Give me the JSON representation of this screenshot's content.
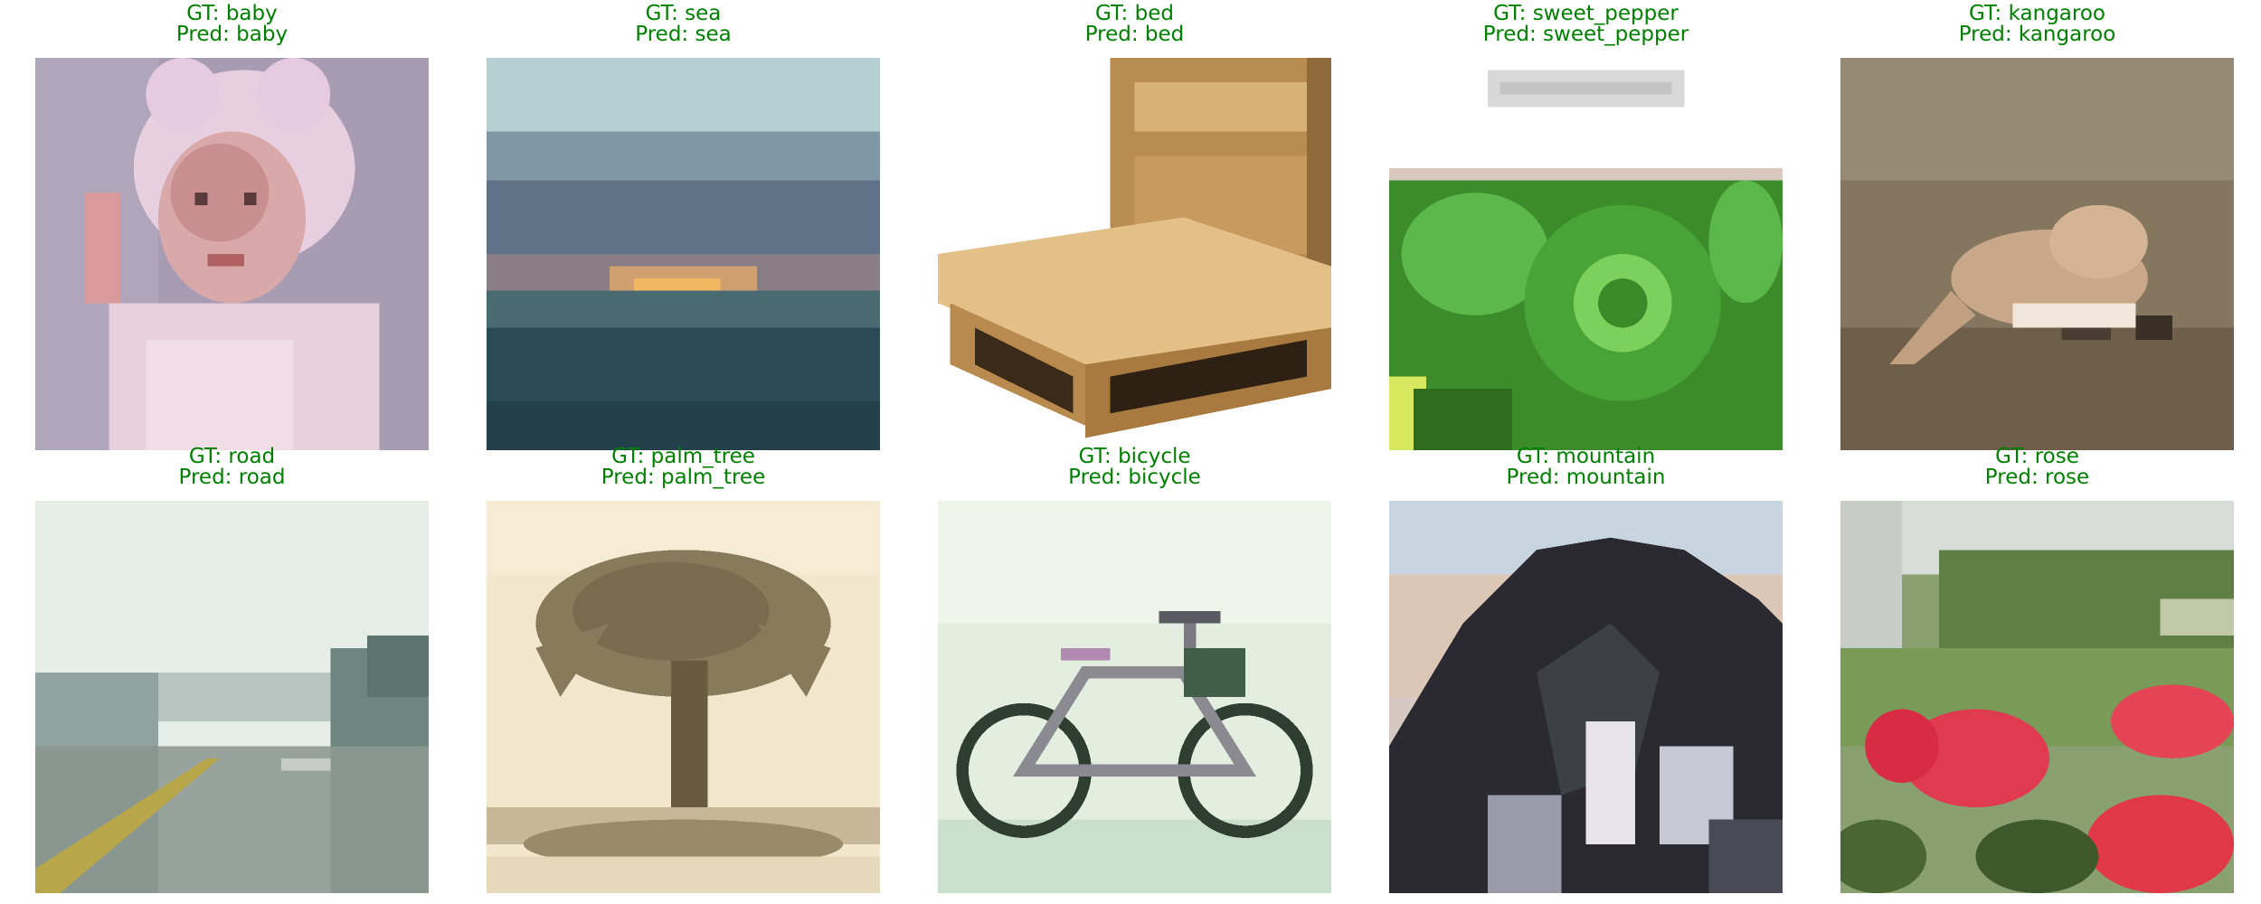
{
  "panels": [
    {
      "gt": "GT: baby",
      "pred": "Pred: baby",
      "scene": "baby"
    },
    {
      "gt": "GT: sea",
      "pred": "Pred: sea",
      "scene": "sea"
    },
    {
      "gt": "GT: bed",
      "pred": "Pred: bed",
      "scene": "bed"
    },
    {
      "gt": "GT: sweet_pepper",
      "pred": "Pred: sweet_pepper",
      "scene": "sweet_pepper"
    },
    {
      "gt": "GT: kangaroo",
      "pred": "Pred: kangaroo",
      "scene": "kangaroo"
    },
    {
      "gt": "GT: road",
      "pred": "Pred: road",
      "scene": "road"
    },
    {
      "gt": "GT: palm_tree",
      "pred": "Pred: palm_tree",
      "scene": "palm_tree"
    },
    {
      "gt": "GT: bicycle",
      "pred": "Pred: bicycle",
      "scene": "bicycle"
    },
    {
      "gt": "GT: mountain",
      "pred": "Pred: mountain",
      "scene": "mountain"
    },
    {
      "gt": "GT: rose",
      "pred": "Pred: rose",
      "scene": "rose"
    }
  ],
  "colors": {
    "correct_label": "#008000"
  }
}
